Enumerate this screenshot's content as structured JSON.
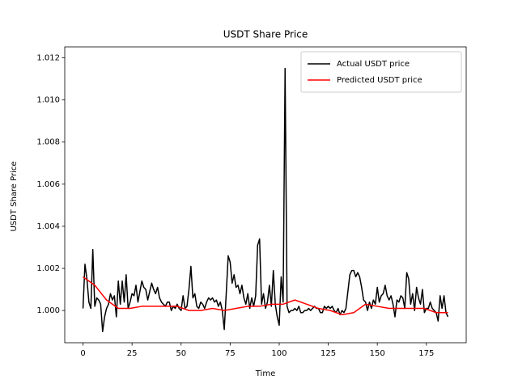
{
  "chart_data": {
    "type": "line",
    "title": "USDT Share Price",
    "x_label": "Time",
    "y_label": "USDT Share Price",
    "xlim": [
      -9.3,
      195.3
    ],
    "xticks": [
      0,
      25,
      50,
      75,
      100,
      125,
      150,
      175
    ],
    "ylim": [
      0.99847,
      1.01252
    ],
    "yticks": [
      {
        "value": 1.0,
        "label": "1.000"
      },
      {
        "value": 1.002,
        "label": "1.002"
      },
      {
        "value": 1.004,
        "label": "1.004"
      },
      {
        "value": 1.006,
        "label": "1.006"
      },
      {
        "value": 1.008,
        "label": "1.008"
      },
      {
        "value": 1.01,
        "label": "1.010"
      },
      {
        "value": 1.012,
        "label": "1.012"
      }
    ],
    "legend": "upper right",
    "series": [
      {
        "name": "Actual USDT price",
        "color": "#000000",
        "x": [
          0,
          1,
          2,
          3,
          4,
          5,
          6,
          7,
          8,
          9,
          10,
          11,
          12,
          13,
          14,
          15,
          16,
          17,
          18,
          19,
          20,
          21,
          22,
          23,
          24,
          25,
          26,
          27,
          28,
          29,
          30,
          31,
          32,
          33,
          34,
          35,
          36,
          37,
          38,
          39,
          40,
          41,
          42,
          43,
          44,
          45,
          46,
          47,
          48,
          49,
          50,
          51,
          52,
          53,
          54,
          55,
          56,
          57,
          58,
          59,
          60,
          61,
          62,
          63,
          64,
          65,
          66,
          67,
          68,
          69,
          70,
          71,
          72,
          73,
          74,
          75,
          76,
          77,
          78,
          79,
          80,
          81,
          82,
          83,
          84,
          85,
          86,
          87,
          88,
          89,
          90,
          91,
          92,
          93,
          94,
          95,
          96,
          97,
          98,
          99,
          100,
          101,
          102,
          103,
          104,
          105,
          106,
          107,
          108,
          109,
          110,
          111,
          112,
          113,
          114,
          115,
          116,
          117,
          118,
          119,
          120,
          121,
          122,
          123,
          124,
          125,
          126,
          127,
          128,
          129,
          130,
          131,
          132,
          133,
          134,
          135,
          136,
          137,
          138,
          139,
          140,
          141,
          142,
          143,
          144,
          145,
          146,
          147,
          148,
          149,
          150,
          151,
          152,
          153,
          154,
          155,
          156,
          157,
          158,
          159,
          160,
          161,
          162,
          163,
          164,
          165,
          166,
          167,
          168,
          169,
          170,
          171,
          172,
          173,
          174,
          175,
          176,
          177,
          178,
          179,
          180,
          181,
          182,
          183,
          184,
          185,
          186
        ],
        "values": [
          1.0001,
          1.0022,
          1.0015,
          1.0004,
          1.0001,
          1.0029,
          1.0002,
          1.0006,
          1.0005,
          1.0003,
          0.999,
          0.9997,
          1.0001,
          1.0003,
          1.0008,
          1.0005,
          1.0007,
          0.9997,
          1.0014,
          1.0003,
          1.0014,
          1.0004,
          1.0017,
          1.0001,
          1.0004,
          1.0008,
          1.0007,
          1.0012,
          1.0004,
          1.0009,
          1.0014,
          1.0011,
          1.001,
          1.0005,
          1.0009,
          1.0013,
          1.001,
          1.0008,
          1.0011,
          1.0006,
          1.0004,
          1.0003,
          1.0002,
          1.0004,
          1.0004,
          1.0,
          1.0002,
          1.0001,
          1.0003,
          1.0001,
          1.0,
          1.0007,
          1.0001,
          1.0002,
          1.001,
          1.0021,
          1.0006,
          1.0008,
          1.0002,
          1.0001,
          1.0004,
          1.0003,
          1.0001,
          1.0004,
          1.0006,
          1.0005,
          1.0006,
          1.0004,
          1.0005,
          1.0002,
          1.0004,
          1.0,
          0.9991,
          1.0008,
          1.0026,
          1.0023,
          1.0013,
          1.0017,
          1.0011,
          1.0012,
          1.0008,
          1.0012,
          1.0006,
          1.0003,
          1.0008,
          1.0001,
          1.0006,
          1.0002,
          1.0007,
          1.0031,
          1.0034,
          1.0003,
          1.0008,
          1.0001,
          1.0004,
          1.0012,
          1.0002,
          1.0019,
          1.0003,
          0.9997,
          0.9993,
          1.0016,
          1.0004,
          1.0115,
          1.0002,
          0.9999,
          1.0,
          1.0,
          1.0001,
          1.0,
          1.0002,
          0.9999,
          0.9999,
          1.0,
          1.0,
          1.0001,
          1.0,
          1.0001,
          1.0002,
          1.0001,
          1.0001,
          0.9999,
          0.9999,
          1.0002,
          1.0001,
          1.0002,
          1.0001,
          1.0002,
          1.0,
          0.9999,
          1.0001,
          0.9998,
          1.0,
          0.9999,
          1.0001,
          1.0009,
          1.0017,
          1.0019,
          1.0019,
          1.0016,
          1.0018,
          1.0016,
          1.0011,
          1.0005,
          1.0004,
          1.0,
          1.0004,
          1.0001,
          1.0005,
          1.0003,
          1.0011,
          1.0004,
          1.0007,
          1.0008,
          1.0012,
          1.0007,
          1.0005,
          1.0007,
          1.0003,
          0.9997,
          1.0005,
          1.0004,
          1.0007,
          1.0006,
          1.0001,
          1.0018,
          1.0015,
          1.0003,
          1.0008,
          1.0,
          1.0011,
          1.0006,
          1.0003,
          1.001,
          0.9999,
          1.0001,
          1.0001,
          1.0004,
          1.0001,
          1.0,
          0.9999,
          0.9995,
          1.0007,
          1.0001,
          1.0007,
          0.9999,
          0.9997
        ]
      },
      {
        "name": "Predicted USDT price",
        "color": "#ff0000",
        "x": [
          0,
          6,
          12,
          18,
          24,
          30,
          36,
          42,
          48,
          54,
          60,
          66,
          72,
          78,
          84,
          90,
          96,
          102,
          108,
          114,
          120,
          126,
          132,
          138,
          144,
          150,
          156,
          162,
          168,
          174,
          180,
          186
        ],
        "values": [
          1.0016,
          1.0012,
          1.0005,
          1.0001,
          1.0001,
          1.0002,
          1.0002,
          1.0002,
          1.0002,
          1.0,
          1.0,
          1.0001,
          1.0,
          1.0001,
          1.0002,
          1.0002,
          1.0003,
          1.0003,
          1.0005,
          1.0003,
          1.0001,
          1.0,
          0.9998,
          0.9999,
          1.0003,
          1.0002,
          1.0001,
          1.0001,
          1.0001,
          1.0001,
          0.9999,
          0.9999
        ]
      }
    ]
  }
}
